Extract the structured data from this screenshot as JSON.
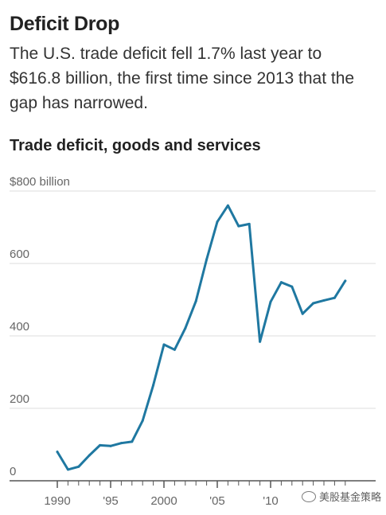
{
  "headline": "Deficit Drop",
  "dek": "The U.S. trade deficit fell 1.7% last year to $616.8 billion, the first time since 2013 that the gap has narrowed.",
  "watermark": "美股基金策略",
  "colors": {
    "line": "#1f78a1",
    "grid": "#dddddd",
    "axis": "#555555"
  },
  "chart_data": {
    "type": "line",
    "title": "Trade deficit, goods and services",
    "xlabel": "",
    "ylabel": "",
    "ylim": [
      0,
      800
    ],
    "xlim": [
      1990,
      2017
    ],
    "y_ticks": [
      {
        "value": 800,
        "label": "$800 billion"
      },
      {
        "value": 600,
        "label": "600"
      },
      {
        "value": 400,
        "label": "400"
      },
      {
        "value": 200,
        "label": "200"
      },
      {
        "value": 0,
        "label": "0"
      }
    ],
    "x_ticks": [
      {
        "value": 1990,
        "label": "1990"
      },
      {
        "value": 1995,
        "label": "'95"
      },
      {
        "value": 2000,
        "label": "2000"
      },
      {
        "value": 2005,
        "label": "'05"
      },
      {
        "value": 2010,
        "label": "'10"
      }
    ],
    "grid": true,
    "series": [
      {
        "x": [
          1990,
          1991,
          1992,
          1993,
          1994,
          1995,
          1996,
          1997,
          1998,
          1999,
          2000,
          2001,
          2002,
          2003,
          2004,
          2005,
          2006,
          2007,
          2008,
          2009,
          2010,
          2011,
          2012,
          2013,
          2014,
          2015,
          2016,
          2017
        ],
        "values": [
          80,
          31,
          39,
          70,
          98,
          96,
          104,
          108,
          166,
          264,
          376,
          362,
          421,
          496,
          611,
          715,
          760,
          703,
          709,
          384,
          494,
          548,
          536,
          461,
          490,
          498,
          505,
          552
        ],
        "values_note_ignore": ""
      }
    ]
  }
}
